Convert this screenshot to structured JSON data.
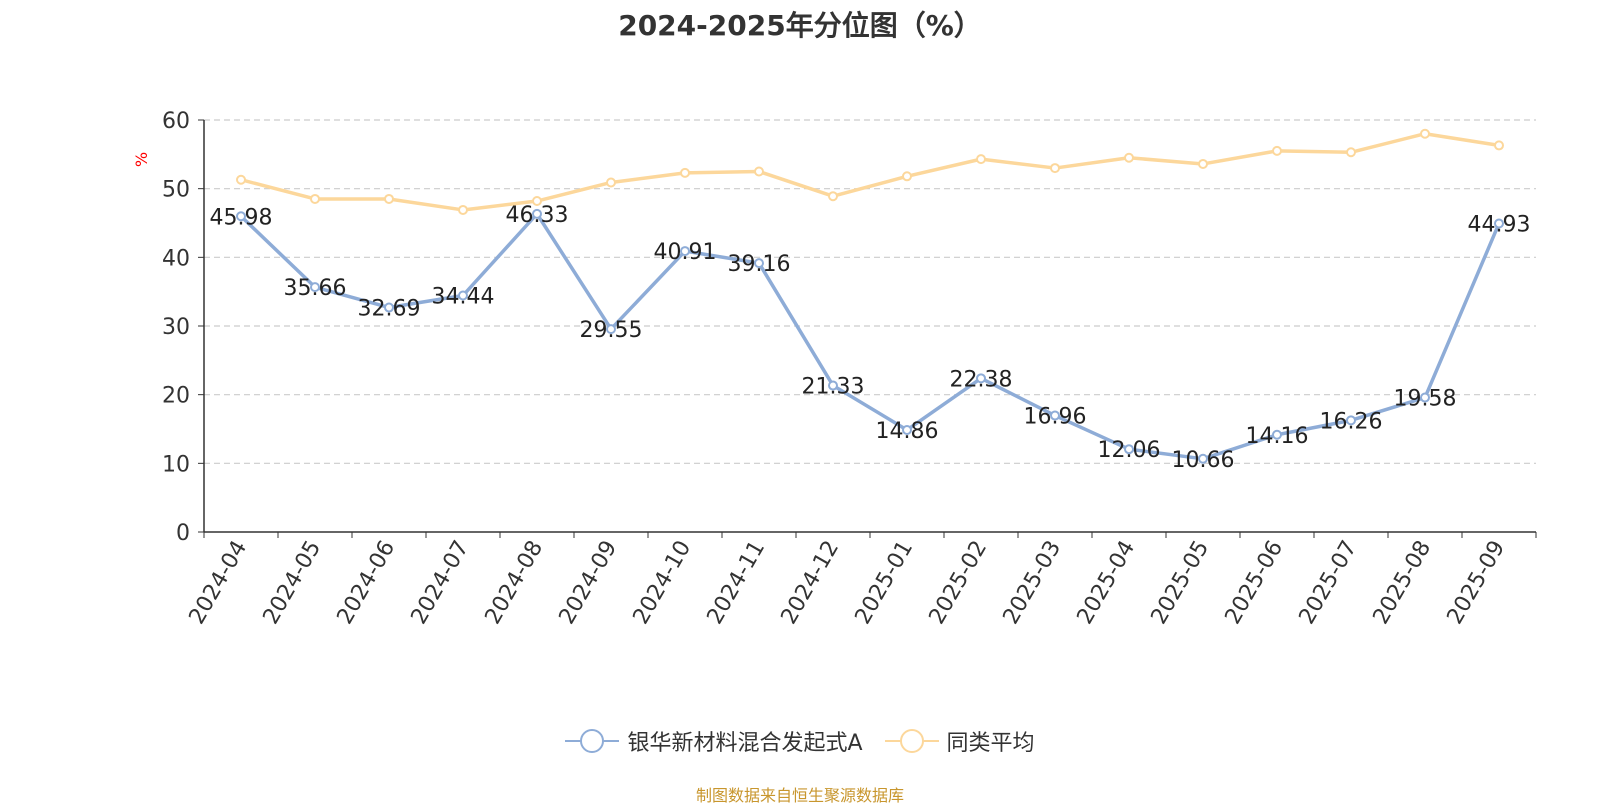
{
  "chart_data": {
    "type": "line",
    "title": "2024-2025年分位图（%）",
    "ylabel": "%",
    "xlabel": "",
    "ylim": [
      0,
      60
    ],
    "yticks": [
      0,
      10,
      20,
      30,
      40,
      50,
      60
    ],
    "grid": true,
    "categories": [
      "2024-04",
      "2024-05",
      "2024-06",
      "2024-07",
      "2024-08",
      "2024-09",
      "2024-10",
      "2024-11",
      "2024-12",
      "2025-01",
      "2025-02",
      "2025-03",
      "2025-04",
      "2025-05",
      "2025-06",
      "2025-07",
      "2025-08",
      "2025-09"
    ],
    "series": [
      {
        "name": "银华新材料混合发起式A",
        "color": "#8eacd7",
        "values": [
          45.98,
          35.66,
          32.69,
          34.44,
          46.33,
          29.55,
          40.91,
          39.16,
          21.33,
          14.86,
          22.38,
          16.96,
          12.06,
          10.66,
          14.16,
          16.26,
          19.58,
          44.93
        ],
        "labels": [
          "45.98",
          "35.66",
          "32.69",
          "34.44",
          "46.33",
          "29.55",
          "40.91",
          "39.16",
          "21.33",
          "14.86",
          "22.38",
          "16.96",
          "12.06",
          "10.66",
          "14.16",
          "16.26",
          "19.58",
          "44.93"
        ]
      },
      {
        "name": "同类平均",
        "color": "#fcd79b",
        "values": [
          51.3,
          48.5,
          48.5,
          46.9,
          48.2,
          50.9,
          52.3,
          52.5,
          48.9,
          51.8,
          54.3,
          53.0,
          54.5,
          53.6,
          55.5,
          55.3,
          58.0,
          56.3
        ]
      }
    ],
    "legend": "bottom-center",
    "source": "制图数据来自恒生聚源数据库"
  }
}
